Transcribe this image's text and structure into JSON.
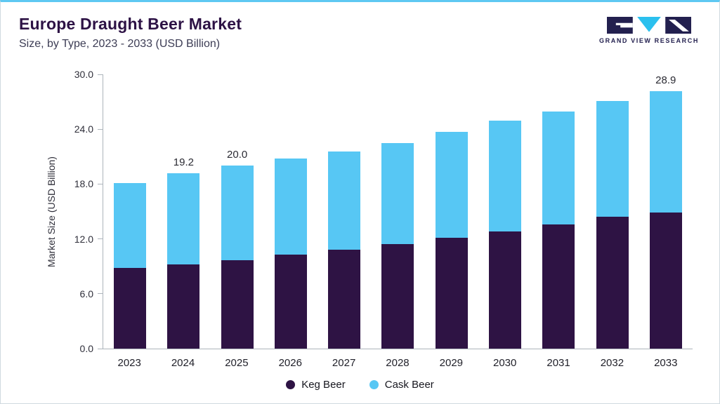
{
  "header": {
    "title": "Europe Draught Beer Market",
    "subtitle": "Size, by Type, 2023 - 2033 (USD Billion)"
  },
  "logo": {
    "brand": "GRAND VIEW RESEARCH",
    "dark_color": "#23204f",
    "cyan_color": "#2bc0ee"
  },
  "colors": {
    "accent_top_border": "#5ec8f2",
    "title_text": "#2d1245",
    "axis_line": "#adb4bb"
  },
  "chart_data": {
    "type": "bar",
    "stacked": true,
    "title": "Europe Draught Beer Market",
    "subtitle": "Size, by Type, 2023 - 2033 (USD Billion)",
    "xlabel": "",
    "ylabel": "Market Size (USD Billion)",
    "ylim": [
      0,
      30
    ],
    "yticks": [
      "0.0",
      "6.0",
      "12.0",
      "18.0",
      "24.0",
      "30.0"
    ],
    "grid": false,
    "legend_position": "bottom",
    "categories": [
      "2023",
      "2024",
      "2025",
      "2026",
      "2027",
      "2028",
      "2029",
      "2030",
      "2031",
      "2032",
      "2033"
    ],
    "series": [
      {
        "name": "Keg Beer",
        "color": "#2e1344",
        "values": [
          8.8,
          9.2,
          9.7,
          10.3,
          10.8,
          11.4,
          12.1,
          12.8,
          13.6,
          14.4,
          15.3
        ]
      },
      {
        "name": "Cask Beer",
        "color": "#57c7f4",
        "values": [
          9.3,
          10.0,
          10.3,
          10.5,
          10.8,
          11.1,
          11.6,
          12.1,
          12.3,
          12.7,
          13.6
        ]
      }
    ],
    "totals": [
      18.1,
      19.2,
      20.0,
      20.8,
      21.6,
      22.5,
      23.7,
      24.9,
      25.9,
      27.1,
      28.9
    ],
    "total_labels": [
      null,
      "19.2",
      "20.0",
      null,
      null,
      null,
      null,
      null,
      null,
      null,
      "28.9"
    ]
  }
}
